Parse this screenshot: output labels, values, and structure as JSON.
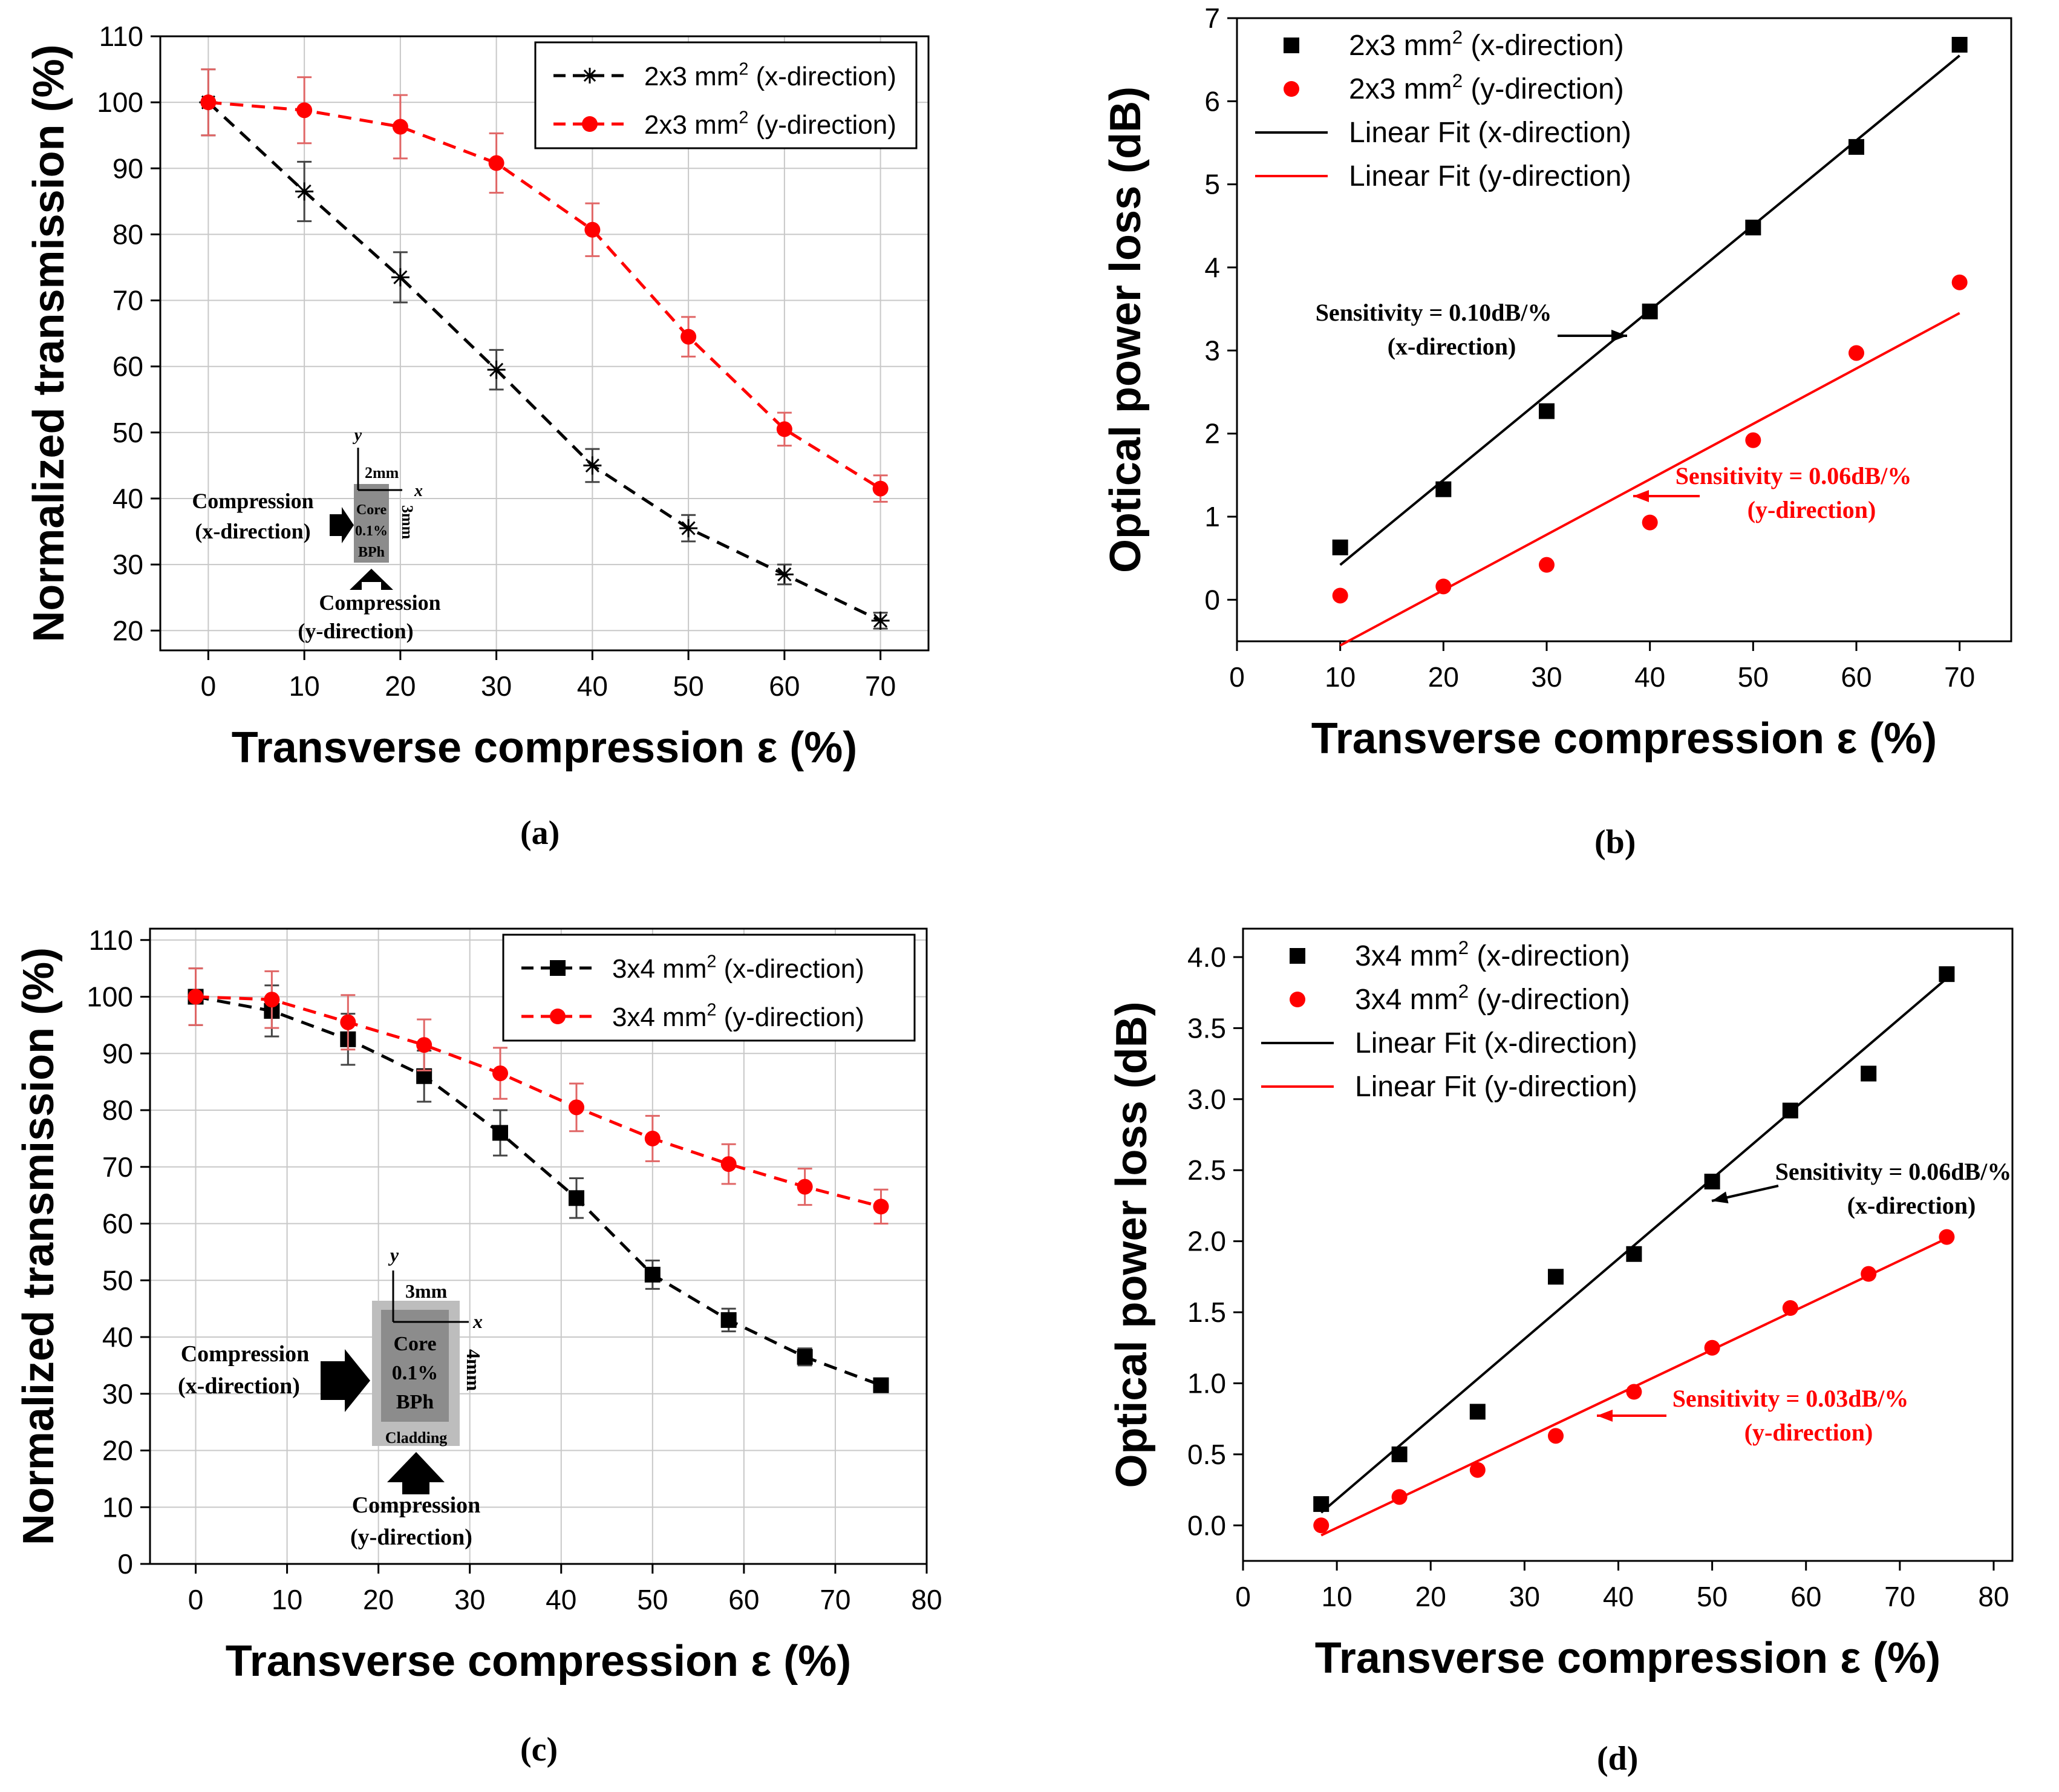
{
  "figure": {
    "colors": {
      "black": "#000000",
      "red": "#ff0000",
      "grid": "#c8c8c8",
      "errbar_x": "#444444",
      "errbar_y": "#e06666"
    },
    "captions": [
      "(a)",
      "(b)",
      "(c)",
      "(d)"
    ]
  },
  "chart_data": [
    {
      "id": "a",
      "type": "line",
      "xlabel": "Transverse compression ε (%)",
      "ylabel": "Normalized transmission (%)",
      "xlim": [
        -5,
        75
      ],
      "ylim": [
        17,
        110
      ],
      "xticks": [
        0,
        10,
        20,
        30,
        40,
        50,
        60,
        70
      ],
      "yticks": [
        20,
        30,
        40,
        50,
        60,
        70,
        80,
        90,
        100,
        110
      ],
      "grid": true,
      "legend": "top-right",
      "series": [
        {
          "name": "2x3 mm2 (x-direction)",
          "color": "#000000",
          "marker": "star",
          "line": "dashed",
          "x": [
            0,
            10,
            20,
            30,
            40,
            50,
            60,
            70
          ],
          "y": [
            100,
            86.5,
            73.5,
            59.5,
            45,
            35.5,
            28.5,
            21.5
          ],
          "err": [
            5,
            4.5,
            3.8,
            3,
            2.5,
            2,
            1.5,
            1.2
          ]
        },
        {
          "name": "2x3 mm2 (y-direction)",
          "color": "#ff0000",
          "marker": "circle",
          "line": "dashed",
          "x": [
            0,
            10,
            20,
            30,
            40,
            50,
            60,
            70
          ],
          "y": [
            100,
            98.8,
            96.3,
            90.8,
            80.7,
            64.5,
            50.5,
            41.5
          ],
          "err": [
            5,
            5,
            4.8,
            4.5,
            4,
            3,
            2.5,
            2
          ]
        }
      ],
      "inset": {
        "compression_x": "Compression",
        "compression_x_dir": "(x-direction)",
        "compression_y": "Compression",
        "compression_y_dir": "(y-direction)",
        "core": "Core",
        "conc": "0.1%",
        "material": "BPh",
        "axis_y": "y",
        "axis_x": "x",
        "width": "2mm",
        "height": "3mm"
      }
    },
    {
      "id": "b",
      "type": "scatter",
      "xlabel": "Transverse compression ε (%)",
      "ylabel": "Optical power loss (dB)",
      "xlim": [
        0,
        75
      ],
      "ylim": [
        -0.5,
        7
      ],
      "xticks": [
        0,
        10,
        20,
        30,
        40,
        50,
        60,
        70
      ],
      "yticks": [
        0,
        1,
        2,
        3,
        4,
        5,
        6,
        7
      ],
      "grid": false,
      "legend": "top-left",
      "series": [
        {
          "name": "2x3 mm2 (x-direction)",
          "color": "#000000",
          "marker": "square",
          "x": [
            10,
            20,
            30,
            40,
            50,
            60,
            70
          ],
          "y": [
            0.63,
            1.33,
            2.27,
            3.47,
            4.48,
            5.45,
            6.68
          ]
        },
        {
          "name": "2x3 mm2 (y-direction)",
          "color": "#ff0000",
          "marker": "circle",
          "x": [
            10,
            20,
            30,
            40,
            50,
            60,
            70
          ],
          "y": [
            0.05,
            0.16,
            0.42,
            0.93,
            1.92,
            2.97,
            3.82
          ]
        }
      ],
      "fits": [
        {
          "name": "Linear Fit (x-direction)",
          "color": "#000000",
          "x": [
            10,
            70
          ],
          "y": [
            0.42,
            6.55
          ]
        },
        {
          "name": "Linear Fit (y-direction)",
          "color": "#ff0000",
          "x": [
            10,
            70
          ],
          "y": [
            -0.55,
            3.45
          ]
        }
      ],
      "annotations": [
        {
          "line1": "Sensitivity = 0.10dB/%",
          "line2": "(x-direction)",
          "color": "#000000"
        },
        {
          "line1": "Sensitivity = 0.06dB/%",
          "line2": "(y-direction)",
          "color": "#ff0000"
        }
      ]
    },
    {
      "id": "c",
      "type": "line",
      "xlabel": "Transverse compression ε (%)",
      "ylabel": "Normalized transmission (%)",
      "xlim": [
        -5,
        80
      ],
      "ylim": [
        0,
        112
      ],
      "xticks": [
        0,
        10,
        20,
        30,
        40,
        50,
        60,
        70,
        80
      ],
      "yticks": [
        0,
        10,
        20,
        30,
        40,
        50,
        60,
        70,
        80,
        90,
        100,
        110
      ],
      "grid": true,
      "legend": "top-right",
      "series": [
        {
          "name": "3x4 mm2 (x-direction)",
          "color": "#000000",
          "marker": "square",
          "line": "dashed",
          "x": [
            0,
            8.33,
            16.67,
            25,
            33.33,
            41.67,
            50,
            58.33,
            66.67,
            75
          ],
          "y": [
            100,
            97.5,
            92.5,
            86,
            76,
            64.5,
            51,
            43,
            36.5,
            31.5
          ],
          "err": [
            5,
            4.5,
            4.5,
            4.5,
            4,
            3.5,
            2.5,
            2,
            1.5,
            1
          ]
        },
        {
          "name": "3x4 mm2 (y-direction)",
          "color": "#ff0000",
          "marker": "circle",
          "line": "dashed",
          "x": [
            0,
            8.33,
            16.67,
            25,
            33.33,
            41.67,
            50,
            58.33,
            66.67,
            75
          ],
          "y": [
            100,
            99.5,
            95.5,
            91.5,
            86.5,
            80.5,
            75,
            70.5,
            66.5,
            63
          ],
          "err": [
            5,
            5,
            4.8,
            4.5,
            4.5,
            4.2,
            4,
            3.5,
            3.2,
            3
          ]
        }
      ],
      "inset": {
        "compression_x": "Compression",
        "compression_x_dir": "(x-direction)",
        "compression_y": "Compression",
        "compression_y_dir": "(y-direction)",
        "core": "Core",
        "conc": "0.1%",
        "material": "BPh",
        "cladding": "Cladding",
        "axis_y": "y",
        "axis_x": "x",
        "width": "3mm",
        "height": "4mm"
      }
    },
    {
      "id": "d",
      "type": "scatter",
      "xlabel": "Transverse compression ε (%)",
      "ylabel": "Optical power loss (dB)",
      "xlim": [
        0,
        82
      ],
      "ylim": [
        -0.25,
        4.2
      ],
      "xticks": [
        0,
        10,
        20,
        30,
        40,
        50,
        60,
        70,
        80
      ],
      "yticks": [
        0.0,
        0.5,
        1.0,
        1.5,
        2.0,
        2.5,
        3.0,
        3.5,
        4.0
      ],
      "ytick_labels": [
        "0.0",
        "0.5",
        "1.0",
        "1.5",
        "2.0",
        "2.5",
        "3.0",
        "3.5",
        "4.0"
      ],
      "grid": false,
      "legend": "top-left",
      "series": [
        {
          "name": "3x4 mm2 (x-direction)",
          "color": "#000000",
          "marker": "square",
          "x": [
            8.33,
            16.67,
            25,
            33.33,
            41.67,
            50,
            58.33,
            66.67,
            75
          ],
          "y": [
            0.15,
            0.5,
            0.8,
            1.75,
            1.91,
            2.42,
            2.92,
            3.18,
            3.88
          ]
        },
        {
          "name": "3x4 mm2 (y-direction)",
          "color": "#ff0000",
          "marker": "circle",
          "x": [
            8.33,
            16.67,
            25,
            33.33,
            41.67,
            50,
            58.33,
            66.67,
            75
          ],
          "y": [
            0.0,
            0.2,
            0.39,
            0.63,
            0.94,
            1.25,
            1.53,
            1.77,
            2.03
          ]
        }
      ],
      "fits": [
        {
          "name": "Linear Fit (x-direction)",
          "color": "#000000",
          "x": [
            8.33,
            75
          ],
          "y": [
            0.09,
            3.85
          ]
        },
        {
          "name": "Linear Fit (y-direction)",
          "color": "#ff0000",
          "x": [
            8.33,
            75
          ],
          "y": [
            -0.07,
            2.02
          ]
        }
      ],
      "annotations": [
        {
          "line1": "Sensitivity = 0.06dB/%",
          "line2": "(x-direction)",
          "color": "#000000"
        },
        {
          "line1": "Sensitivity = 0.03dB/%",
          "line2": "(y-direction)",
          "color": "#ff0000"
        }
      ]
    }
  ]
}
